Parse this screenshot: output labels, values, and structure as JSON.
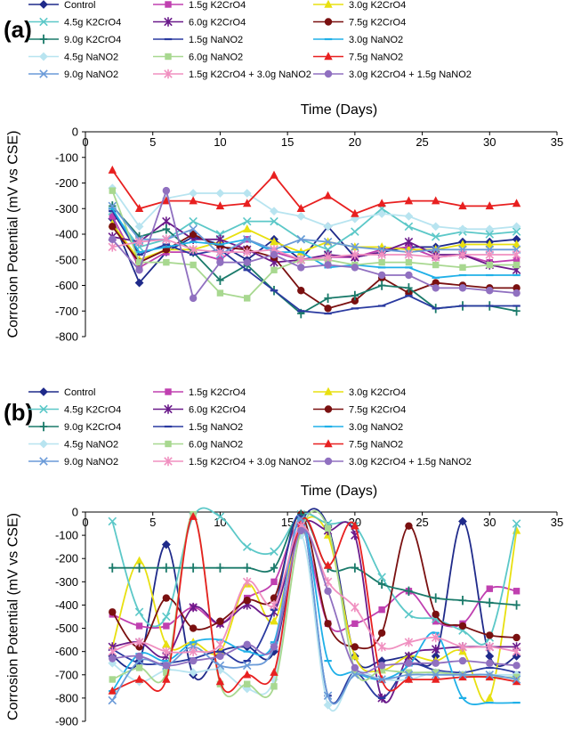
{
  "figure": {
    "series_styles": [
      {
        "name": "Control",
        "color": "#1f2a8a",
        "marker": "diamond"
      },
      {
        "name": "1.5g K2CrO4",
        "color": "#c040b0",
        "marker": "square"
      },
      {
        "name": "3.0g K2CrO4",
        "color": "#e8e010",
        "marker": "triangle"
      },
      {
        "name": "4.5g K2CrO4",
        "color": "#5cc8c8",
        "marker": "x"
      },
      {
        "name": "6.0g K2CrO4",
        "color": "#6a1a8a",
        "marker": "star"
      },
      {
        "name": "7.5g K2CrO4",
        "color": "#7a1010",
        "marker": "circle"
      },
      {
        "name": "9.0g K2CrO4",
        "color": "#1a7a6a",
        "marker": "plus"
      },
      {
        "name": "1.5g NaNO2",
        "color": "#2a3aa0",
        "marker": "dash"
      },
      {
        "name": "3.0g NaNO2",
        "color": "#20b0e8",
        "marker": "dash"
      },
      {
        "name": "4.5g NaNO2",
        "color": "#b8e4f0",
        "marker": "diamond"
      },
      {
        "name": "6.0g NaNO2",
        "color": "#a8d890",
        "marker": "square"
      },
      {
        "name": "7.5g NaNO2",
        "color": "#e82020",
        "marker": "triangle"
      },
      {
        "name": "9.0g NaNO2",
        "color": "#6a9ad8",
        "marker": "x"
      },
      {
        "name": "1.5g K2CrO4 + 3.0g NaNO2",
        "color": "#f090c0",
        "marker": "star"
      },
      {
        "name": "3.0g K2CrO4 + 1.5g NaNO2",
        "color": "#9070c0",
        "marker": "circle"
      }
    ]
  },
  "chart_data": [
    {
      "panel_label": "(a)",
      "type": "line",
      "xlabel": "Time (Days)",
      "ylabel": "Corrosion Potential (mV vs CSE)",
      "xlim": [
        0,
        35
      ],
      "ylim": [
        -800,
        0
      ],
      "xticks": [
        0,
        5,
        10,
        15,
        20,
        25,
        30,
        35
      ],
      "yticks": [
        0,
        -100,
        -200,
        -300,
        -400,
        -500,
        -600,
        -700,
        -800
      ],
      "legend": "top",
      "x": [
        2,
        4,
        6,
        8,
        10,
        12,
        14,
        16,
        18,
        20,
        22,
        24,
        26,
        28,
        30,
        32
      ],
      "series": [
        {
          "name": "Control",
          "values": [
            -340,
            -590,
            -470,
            -410,
            -440,
            -500,
            -420,
            -500,
            -370,
            -490,
            -470,
            -450,
            -450,
            -430,
            -430,
            -420
          ]
        },
        {
          "name": "1.5g K2CrO4",
          "values": [
            -330,
            -530,
            -470,
            -470,
            -500,
            -420,
            -470,
            -500,
            -490,
            -490,
            -460,
            -450,
            -490,
            -480,
            -510,
            -500
          ]
        },
        {
          "name": "3.0g K2CrO4",
          "values": [
            -360,
            -500,
            -460,
            -460,
            -430,
            -380,
            -430,
            -470,
            -430,
            -450,
            -450,
            -460,
            -460,
            -440,
            -440,
            -440
          ]
        },
        {
          "name": "4.5g K2CrO4",
          "values": [
            -310,
            -450,
            -420,
            -350,
            -400,
            -350,
            -350,
            -420,
            -460,
            -390,
            -300,
            -370,
            -410,
            -390,
            -400,
            -390
          ]
        },
        {
          "name": "6.0g K2CrO4",
          "values": [
            -410,
            -430,
            -350,
            -420,
            -420,
            -460,
            -510,
            -500,
            -480,
            -490,
            -470,
            -430,
            -480,
            -480,
            -520,
            -540
          ]
        },
        {
          "name": "7.5g K2CrO4",
          "values": [
            -370,
            -510,
            -460,
            -400,
            -450,
            -460,
            -490,
            -620,
            -690,
            -660,
            -570,
            -630,
            -590,
            -600,
            -610,
            -610
          ]
        },
        {
          "name": "9.0g K2CrO4",
          "values": [
            -290,
            -410,
            -380,
            -470,
            -580,
            -520,
            -620,
            -710,
            -650,
            -640,
            -600,
            -610,
            -690,
            -680,
            -680,
            -700
          ]
        },
        {
          "name": "1.5g NaNO2",
          "values": [
            -310,
            -480,
            -440,
            -480,
            -460,
            -540,
            -620,
            -700,
            -710,
            -690,
            -680,
            -640,
            -690,
            -680,
            -680,
            -680
          ]
        },
        {
          "name": "3.0g NaNO2",
          "values": [
            -300,
            -470,
            -450,
            -430,
            -440,
            -420,
            -470,
            -470,
            -530,
            -520,
            -530,
            -530,
            -570,
            -560,
            -560,
            -560
          ]
        },
        {
          "name": "4.5g NaNO2",
          "values": [
            -220,
            -370,
            -260,
            -240,
            -240,
            -240,
            -310,
            -330,
            -370,
            -340,
            -320,
            -330,
            -370,
            -380,
            -380,
            -370
          ]
        },
        {
          "name": "6.0g NaNO2",
          "values": [
            -230,
            -510,
            -510,
            -520,
            -630,
            -650,
            -540,
            -500,
            -500,
            -520,
            -510,
            -510,
            -520,
            -530,
            -520,
            -520
          ]
        },
        {
          "name": "7.5g NaNO2",
          "values": [
            -150,
            -300,
            -270,
            -270,
            -290,
            -280,
            -170,
            -300,
            -250,
            -320,
            -280,
            -270,
            -270,
            -290,
            -290,
            -280
          ]
        },
        {
          "name": "9.0g NaNO2",
          "values": [
            -290,
            -420,
            -420,
            -380,
            -480,
            -420,
            -460,
            -420,
            -430,
            -450,
            -460,
            -470,
            -460,
            -460,
            -460,
            -460
          ]
        },
        {
          "name": "1.5g K2CrO4 + 3.0g NaNO2",
          "values": [
            -450,
            -430,
            -420,
            -460,
            -470,
            -470,
            -460,
            -500,
            -490,
            -480,
            -480,
            -480,
            -490,
            -480,
            -480,
            -480
          ]
        },
        {
          "name": "3.0g K2CrO4 + 1.5g NaNO2",
          "values": [
            -420,
            -540,
            -230,
            -650,
            -510,
            -510,
            -480,
            -530,
            -520,
            -530,
            -560,
            -560,
            -610,
            -610,
            -620,
            -630
          ]
        }
      ]
    },
    {
      "panel_label": "(b)",
      "type": "line",
      "xlabel": "Time (Days)",
      "ylabel": "Corrosion Potential (mV vs CSE)",
      "xlim": [
        0,
        35
      ],
      "ylim": [
        -900,
        0
      ],
      "xticks": [
        0,
        5,
        10,
        15,
        20,
        25,
        30,
        35
      ],
      "yticks": [
        0,
        -100,
        -200,
        -300,
        -400,
        -500,
        -600,
        -700,
        -800,
        -900
      ],
      "legend": "top",
      "x": [
        2,
        4,
        6,
        8,
        10,
        12,
        14,
        16,
        18,
        20,
        22,
        24,
        26,
        28,
        30,
        32
      ],
      "series": [
        {
          "name": "Control",
          "values": [
            -620,
            -640,
            -140,
            -700,
            -600,
            -580,
            -600,
            -50,
            -60,
            -620,
            -640,
            -620,
            -620,
            -40,
            -620,
            -620
          ]
        },
        {
          "name": "1.5g K2CrO4",
          "values": [
            -440,
            -490,
            -490,
            -410,
            -480,
            -370,
            -300,
            -60,
            -480,
            -480,
            -420,
            -340,
            -470,
            -480,
            -330,
            -340
          ]
        },
        {
          "name": "3.0g K2CrO4",
          "values": [
            -580,
            -210,
            -570,
            -560,
            -600,
            -310,
            -470,
            -60,
            -100,
            -620,
            -680,
            -620,
            -640,
            -600,
            -800,
            -80
          ]
        },
        {
          "name": "4.5g K2CrO4",
          "values": [
            -40,
            -430,
            -450,
            -20,
            -20,
            -150,
            -170,
            -10,
            -50,
            -60,
            -280,
            -440,
            -460,
            -510,
            -540,
            -50
          ]
        },
        {
          "name": "6.0g K2CrO4",
          "values": [
            -580,
            -560,
            -620,
            -410,
            -480,
            -400,
            -430,
            -60,
            -80,
            -100,
            -800,
            -620,
            -590,
            -580,
            -580,
            -580
          ]
        },
        {
          "name": "7.5g K2CrO4",
          "values": [
            -430,
            -580,
            -370,
            -500,
            -470,
            -380,
            -370,
            -10,
            -480,
            -580,
            -520,
            -60,
            -440,
            -490,
            -530,
            -540
          ]
        },
        {
          "name": "9.0g K2CrO4",
          "values": [
            -240,
            -240,
            -240,
            -240,
            -240,
            -240,
            -240,
            -10,
            -240,
            -240,
            -310,
            -340,
            -370,
            -380,
            -390,
            -400
          ]
        },
        {
          "name": "1.5g NaNO2",
          "values": [
            -590,
            -650,
            -650,
            -630,
            -600,
            -640,
            -420,
            -20,
            -790,
            -690,
            -800,
            -660,
            -680,
            -690,
            -670,
            -690
          ]
        },
        {
          "name": "3.0g NaNO2",
          "values": [
            -770,
            -610,
            -640,
            -560,
            -550,
            -600,
            -560,
            -30,
            -640,
            -690,
            -720,
            -660,
            -520,
            -800,
            -820,
            -820
          ]
        },
        {
          "name": "4.5g NaNO2",
          "values": [
            -650,
            -730,
            -680,
            -690,
            -680,
            -760,
            -720,
            -100,
            -830,
            -690,
            -720,
            -720,
            -690,
            -700,
            -700,
            -700
          ]
        },
        {
          "name": "6.0g NaNO2",
          "values": [
            -720,
            -670,
            -690,
            -10,
            -740,
            -740,
            -750,
            -80,
            -70,
            -680,
            -680,
            -690,
            -690,
            -700,
            -710,
            -710
          ]
        },
        {
          "name": "7.5g NaNO2",
          "values": [
            -770,
            -720,
            -720,
            -20,
            -730,
            -700,
            -690,
            -40,
            -230,
            -60,
            -720,
            -720,
            -720,
            -710,
            -710,
            -730
          ]
        },
        {
          "name": "9.0g NaNO2",
          "values": [
            -810,
            -640,
            -660,
            -580,
            -660,
            -660,
            -580,
            -30,
            -790,
            -700,
            -720,
            -700,
            -700,
            -700,
            -700,
            -720
          ]
        },
        {
          "name": "1.5g K2CrO4 + 3.0g NaNO2",
          "values": [
            -600,
            -560,
            -600,
            -600,
            -570,
            -300,
            -400,
            -60,
            -300,
            -410,
            -580,
            -560,
            -540,
            -580,
            -580,
            -600
          ]
        },
        {
          "name": "3.0g K2CrO4 + 1.5g NaNO2",
          "values": [
            -630,
            -620,
            -660,
            -640,
            -620,
            -570,
            -580,
            -80,
            -340,
            -670,
            -660,
            -650,
            -650,
            -640,
            -650,
            -660
          ]
        }
      ]
    }
  ]
}
